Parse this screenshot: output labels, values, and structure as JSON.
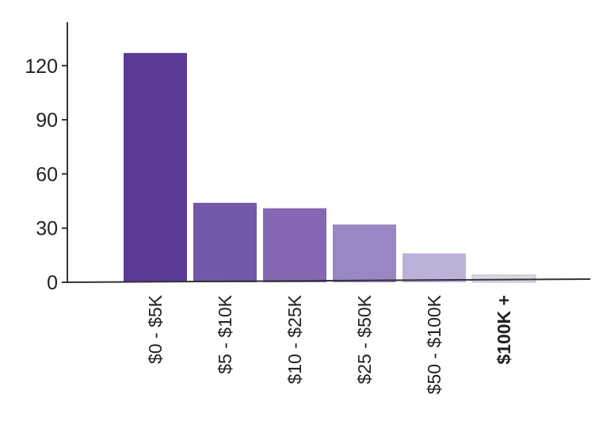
{
  "chart_data": {
    "type": "bar",
    "title": "",
    "xlabel": "",
    "ylabel": "",
    "categories": [
      "$0 - $5K",
      "$5 - $10K",
      "$10 - $25K",
      "$25 - $50K",
      "$50 - $100K",
      "$100K +"
    ],
    "values": [
      127,
      44,
      41,
      32,
      16,
      4
    ],
    "ylim": [
      0,
      140
    ],
    "yticks": [
      0,
      30,
      60,
      90,
      120
    ],
    "ytick_labels": [
      "0",
      "30",
      "60",
      "90",
      "120"
    ],
    "grid": false,
    "legend": "none",
    "bar_colors": [
      "#5b3a96",
      "#7357a8",
      "#8468b3",
      "#9a86c2",
      "#bdb0d9",
      "#dcd6e8"
    ],
    "axis_color": "#333333"
  }
}
